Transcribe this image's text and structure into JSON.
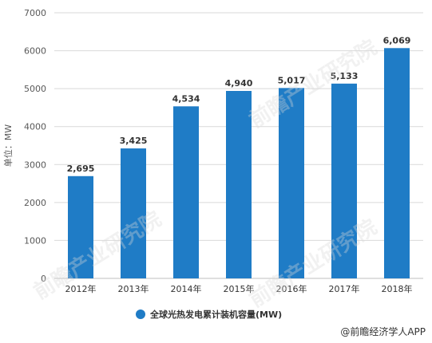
{
  "chart_data": {
    "type": "bar",
    "categories": [
      "2012年",
      "2013年",
      "2014年",
      "2015年",
      "2016年",
      "2017年",
      "2018年"
    ],
    "values": [
      2695,
      3425,
      4534,
      4940,
      5017,
      5133,
      6069
    ],
    "value_labels": [
      "2,695",
      "3,425",
      "4,534",
      "4,940",
      "5,017",
      "5,133",
      "6,069"
    ],
    "ylabel": "单位：MW",
    "ylim": [
      0,
      7000
    ],
    "yticks": [
      0,
      1000,
      2000,
      3000,
      4000,
      5000,
      6000,
      7000
    ],
    "grid": true,
    "legend": {
      "label": "全球光热发电累计装机容量(MW)",
      "placement": "bottom-center"
    },
    "color": "#1f7cc6"
  },
  "watermark": "前瞻产业研究院",
  "credit": "@前瞻经济学人APP"
}
